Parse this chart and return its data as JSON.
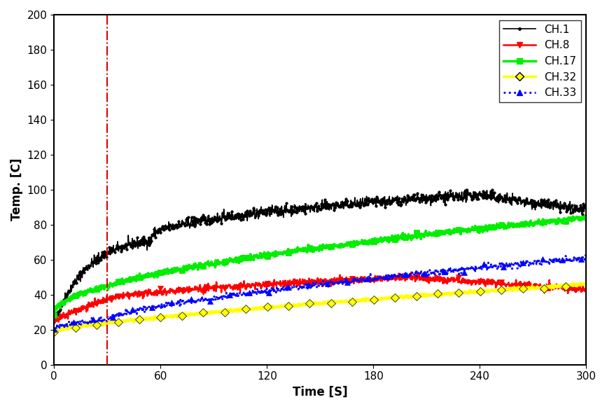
{
  "xlabel": "Time [S]",
  "ylabel": "Temp. [C]",
  "xlim": [
    0,
    300
  ],
  "ylim": [
    0,
    200
  ],
  "xticks": [
    0,
    60,
    120,
    180,
    240,
    300
  ],
  "yticks": [
    0,
    20,
    40,
    60,
    80,
    100,
    120,
    140,
    160,
    180,
    200
  ],
  "vline_x": 30,
  "vline_color": "#dd0000",
  "channels": [
    {
      "name": "CH.1",
      "color": "#000000",
      "linestyle": "-",
      "linewidth": 1.2,
      "marker": "o",
      "markersize": 2.5,
      "markevery": 3,
      "start_temp": 24,
      "plateau_start": 55,
      "plateau_temp": 73,
      "peak_time": 240,
      "peak_temp": 97,
      "end_temp": 88,
      "noise_amp": 1.5
    },
    {
      "name": "CH.8",
      "color": "#ff0000",
      "linestyle": "-",
      "linewidth": 1.8,
      "marker": "v",
      "markersize": 6,
      "markevery": 60,
      "start_temp": 24,
      "plateau_start": 120,
      "plateau_temp": 47,
      "peak_time": 200,
      "peak_temp": 50,
      "end_temp": 43,
      "noise_amp": 1.0
    },
    {
      "name": "CH.17",
      "color": "#00ee00",
      "linestyle": "-",
      "linewidth": 2.5,
      "marker": "s",
      "markersize": 6,
      "markevery": 60,
      "start_temp": 30,
      "plateau_start": 200,
      "plateau_temp": 80,
      "peak_time": 260,
      "peak_temp": 84,
      "end_temp": 82,
      "noise_amp": 0.8
    },
    {
      "name": "CH.32",
      "color": "#ffff00",
      "linestyle": "-",
      "linewidth": 2.5,
      "marker": "D",
      "markersize": 6,
      "markevery": 60,
      "start_temp": 19,
      "plateau_start": 300,
      "plateau_temp": 46,
      "peak_time": 300,
      "peak_temp": 46,
      "end_temp": 46,
      "noise_amp": 0.5
    },
    {
      "name": "CH.33",
      "color": "#0000ff",
      "linestyle": ":",
      "linewidth": 2.0,
      "marker": "^",
      "markersize": 6,
      "markevery": 55,
      "start_temp": 21,
      "plateau_start": 300,
      "plateau_temp": 61,
      "peak_time": 300,
      "peak_temp": 61,
      "end_temp": 61,
      "noise_amp": 0.8
    }
  ],
  "figsize": [
    8.67,
    5.84
  ],
  "dpi": 100
}
